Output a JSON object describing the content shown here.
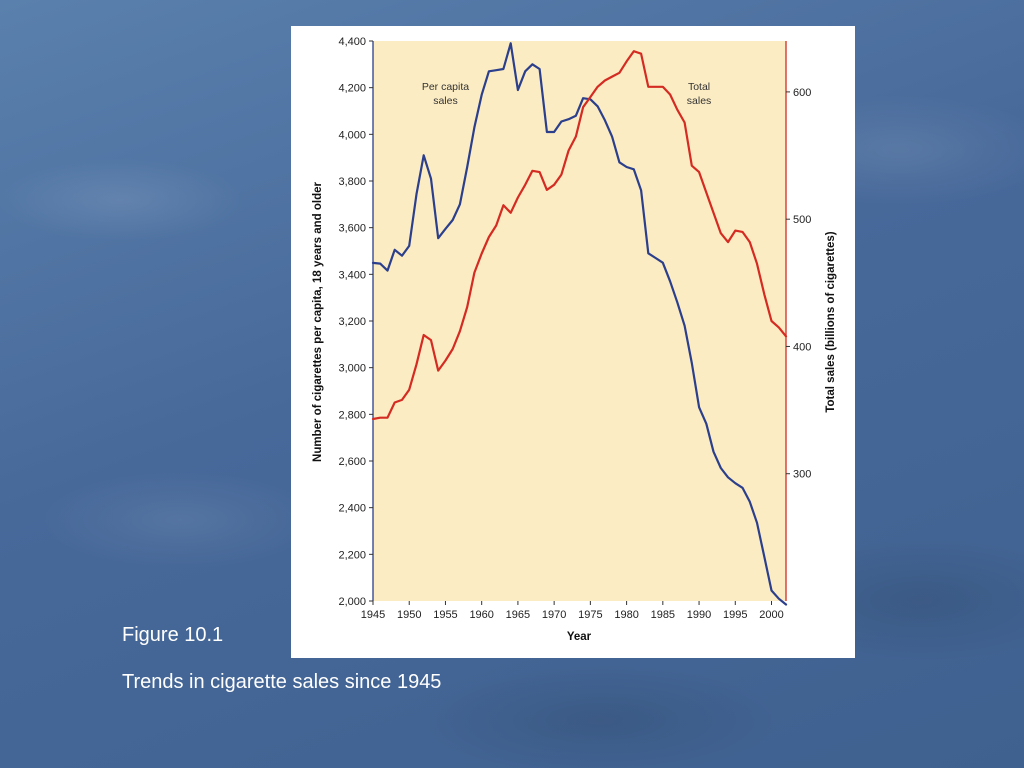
{
  "slide": {
    "figure_label": "Figure 10.1",
    "caption": "Trends in cigarette sales since 1945"
  },
  "colors": {
    "plot_background": "#fcecc3",
    "per_capita_line": "#2b3f8c",
    "total_sales_line": "#d42b22"
  },
  "chart_data": {
    "type": "line",
    "x_label": "Year",
    "y_left_label": "Number of cigarettes per capita, 18 years and older",
    "y_right_label": "Total sales (billions of cigarettes)",
    "x_range": [
      1945,
      2002
    ],
    "y_left_range": [
      2000,
      4400
    ],
    "y_right_range": [
      200,
      640
    ],
    "x_ticks": [
      1945,
      1950,
      1955,
      1960,
      1965,
      1970,
      1975,
      1980,
      1985,
      1990,
      1995,
      2000
    ],
    "x_tick_labels": [
      "1945",
      "1950",
      "1955",
      "1960",
      "1965",
      "1970",
      "1975",
      "1980",
      "1985",
      "1990",
      "1995",
      "2000"
    ],
    "y_left_ticks": [
      2000,
      2200,
      2400,
      2600,
      2800,
      3000,
      3200,
      3400,
      3600,
      3800,
      4000,
      4200,
      4400
    ],
    "y_left_tick_labels": [
      "2,000",
      "2,200",
      "2,400",
      "2,600",
      "2,800",
      "3,000",
      "3,200",
      "3,400",
      "3,600",
      "3,800",
      "4,000",
      "4,200",
      "4,400"
    ],
    "y_right_ticks": [
      300,
      400,
      500,
      600
    ],
    "y_right_tick_labels": [
      "300",
      "400",
      "500",
      "600"
    ],
    "annotations": [
      {
        "lines": [
          "Per capita",
          "sales"
        ],
        "x": 1955,
        "y_left": 4190
      },
      {
        "lines": [
          "Total",
          "sales"
        ],
        "x": 1990,
        "y_left": 4190
      }
    ],
    "series": [
      {
        "name": "Per capita sales",
        "axis": "left",
        "x": [
          1945,
          1946,
          1947,
          1948,
          1949,
          1950,
          1951,
          1952,
          1953,
          1954,
          1955,
          1956,
          1957,
          1958,
          1959,
          1960,
          1961,
          1962,
          1963,
          1964,
          1965,
          1966,
          1967,
          1968,
          1969,
          1970,
          1971,
          1972,
          1973,
          1974,
          1975,
          1976,
          1977,
          1978,
          1979,
          1980,
          1981,
          1982,
          1983,
          1984,
          1985,
          1986,
          1987,
          1988,
          1989,
          1990,
          1991,
          1992,
          1993,
          1994,
          1995,
          1996,
          1997,
          1998,
          1999,
          2000,
          2001,
          2002
        ],
        "values": [
          3449,
          3446,
          3416,
          3505,
          3480,
          3522,
          3744,
          3910,
          3810,
          3555,
          3595,
          3633,
          3700,
          3860,
          4030,
          4170,
          4270,
          4275,
          4280,
          4390,
          4190,
          4270,
          4300,
          4280,
          4010,
          4010,
          4055,
          4065,
          4080,
          4155,
          4150,
          4120,
          4060,
          3990,
          3880,
          3860,
          3850,
          3760,
          3490,
          3470,
          3450,
          3370,
          3280,
          3180,
          3020,
          2830,
          2760,
          2640,
          2570,
          2530,
          2505,
          2485,
          2425,
          2335,
          2190,
          2045,
          2010,
          1985
        ]
      },
      {
        "name": "Total sales",
        "axis": "right",
        "x": [
          1945,
          1946,
          1947,
          1948,
          1949,
          1950,
          1951,
          1952,
          1953,
          1954,
          1955,
          1956,
          1957,
          1958,
          1959,
          1960,
          1961,
          1962,
          1963,
          1964,
          1965,
          1966,
          1967,
          1968,
          1969,
          1970,
          1971,
          1972,
          1973,
          1974,
          1975,
          1976,
          1977,
          1978,
          1979,
          1980,
          1981,
          1982,
          1983,
          1984,
          1985,
          1986,
          1987,
          1988,
          1989,
          1990,
          1991,
          1992,
          1993,
          1994,
          1995,
          1996,
          1997,
          1998,
          1999,
          2000,
          2001,
          2002
        ],
        "values": [
          343,
          344,
          344,
          356,
          358,
          366,
          386,
          409,
          405,
          381,
          389,
          398,
          412,
          431,
          458,
          473,
          486,
          495,
          511,
          505,
          517,
          527,
          538,
          537,
          523,
          527,
          535,
          554,
          565,
          588,
          596,
          604,
          609,
          612,
          615,
          624,
          632,
          630,
          604,
          604,
          604,
          598,
          586,
          576,
          542,
          537,
          521,
          505,
          489,
          482,
          491,
          490,
          482,
          465,
          441,
          420,
          415,
          408
        ]
      }
    ]
  }
}
